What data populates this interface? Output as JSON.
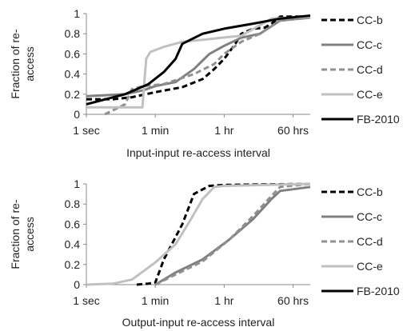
{
  "chart_data": [
    {
      "type": "line",
      "xlabel": "Input-input re-access interval",
      "ylabel_lines": [
        "Fraction of re-",
        "access"
      ],
      "x_scale": "log",
      "x_ticks": [
        {
          "seconds": 1,
          "label": "1 sec"
        },
        {
          "seconds": 60,
          "label": "1 min"
        },
        {
          "seconds": 3600,
          "label": "1 hr"
        },
        {
          "seconds": 216000,
          "label": "60 hrs"
        }
      ],
      "xlim_seconds": [
        1,
        600000
      ],
      "ylim": [
        0,
        1
      ],
      "y_ticks": [
        "0",
        "0.2",
        "0.4",
        "0.6",
        "0.8",
        "1"
      ],
      "grid": false,
      "legend_position": "right",
      "series": [
        {
          "name": "CC-b",
          "color": "#000000",
          "dash": "dashed",
          "points": [
            [
              1,
              0.15
            ],
            [
              5,
              0.15
            ],
            [
              15,
              0.17
            ],
            [
              60,
              0.22
            ],
            [
              300,
              0.27
            ],
            [
              1000,
              0.35
            ],
            [
              2000,
              0.45
            ],
            [
              3600,
              0.55
            ],
            [
              7000,
              0.7
            ],
            [
              10000,
              0.8
            ],
            [
              20000,
              0.85
            ],
            [
              40000,
              0.86
            ],
            [
              60000,
              0.9
            ],
            [
              100000,
              0.97
            ],
            [
              600000,
              0.97
            ]
          ]
        },
        {
          "name": "CC-c",
          "color": "#808080",
          "dash": "solid",
          "points": [
            [
              1,
              0.18
            ],
            [
              10,
              0.2
            ],
            [
              30,
              0.24
            ],
            [
              60,
              0.28
            ],
            [
              200,
              0.32
            ],
            [
              600,
              0.45
            ],
            [
              1500,
              0.6
            ],
            [
              3600,
              0.68
            ],
            [
              10000,
              0.76
            ],
            [
              30000,
              0.8
            ],
            [
              100000,
              0.93
            ],
            [
              600000,
              0.96
            ]
          ]
        },
        {
          "name": "CC-d",
          "color": "#909090",
          "dash": "dashed",
          "points": [
            [
              3,
              0.0
            ],
            [
              10,
              0.1
            ],
            [
              15,
              0.25
            ],
            [
              30,
              0.28
            ],
            [
              100,
              0.3
            ],
            [
              600,
              0.4
            ],
            [
              2000,
              0.5
            ],
            [
              3600,
              0.6
            ],
            [
              10000,
              0.72
            ],
            [
              30000,
              0.8
            ],
            [
              100000,
              0.93
            ],
            [
              600000,
              0.97
            ]
          ]
        },
        {
          "name": "CC-e",
          "color": "#c0c0c0",
          "dash": "solid",
          "points": [
            [
              1,
              0.07
            ],
            [
              20,
              0.07
            ],
            [
              28,
              0.07
            ],
            [
              35,
              0.55
            ],
            [
              45,
              0.62
            ],
            [
              100,
              0.67
            ],
            [
              300,
              0.72
            ],
            [
              1000,
              0.74
            ],
            [
              3000,
              0.76
            ],
            [
              10000,
              0.78
            ],
            [
              60000,
              0.95
            ],
            [
              600000,
              0.97
            ]
          ]
        },
        {
          "name": "FB-2010",
          "color": "#000000",
          "dash": "solid",
          "points": [
            [
              1,
              0.1
            ],
            [
              10,
              0.2
            ],
            [
              40,
              0.3
            ],
            [
              100,
              0.42
            ],
            [
              200,
              0.55
            ],
            [
              300,
              0.7
            ],
            [
              1000,
              0.8
            ],
            [
              3600,
              0.85
            ],
            [
              20000,
              0.9
            ],
            [
              100000,
              0.95
            ],
            [
              600000,
              0.98
            ]
          ]
        }
      ]
    },
    {
      "type": "line",
      "xlabel": "Output-input re-access interval",
      "ylabel_lines": [
        "Fraction of re-",
        "access"
      ],
      "x_scale": "log",
      "x_ticks": [
        {
          "seconds": 1,
          "label": "1 sec"
        },
        {
          "seconds": 60,
          "label": "1 min"
        },
        {
          "seconds": 3600,
          "label": "1 hr"
        },
        {
          "seconds": 216000,
          "label": "60 hrs"
        }
      ],
      "xlim_seconds": [
        1,
        600000
      ],
      "ylim": [
        0,
        1
      ],
      "y_ticks": [
        "0",
        "0.2",
        "0.4",
        "0.6",
        "0.8",
        "1"
      ],
      "grid": false,
      "legend_position": "right",
      "series": [
        {
          "name": "CC-b",
          "color": "#000000",
          "dash": "dashed",
          "points": [
            [
              20,
              0.0
            ],
            [
              40,
              0.01
            ],
            [
              60,
              0.02
            ],
            [
              100,
              0.25
            ],
            [
              300,
              0.6
            ],
            [
              600,
              0.9
            ],
            [
              1500,
              0.98
            ],
            [
              3600,
              0.99
            ],
            [
              600000,
              1.0
            ]
          ]
        },
        {
          "name": "CC-c",
          "color": "#808080",
          "dash": "solid",
          "points": [
            [
              60,
              0.0
            ],
            [
              200,
              0.12
            ],
            [
              1000,
              0.25
            ],
            [
              5000,
              0.45
            ],
            [
              20000,
              0.65
            ],
            [
              60000,
              0.85
            ],
            [
              100000,
              0.93
            ],
            [
              600000,
              0.97
            ]
          ]
        },
        {
          "name": "CC-d",
          "color": "#909090",
          "dash": "dashed",
          "points": [
            [
              60,
              0.0
            ],
            [
              200,
              0.1
            ],
            [
              1000,
              0.23
            ],
            [
              5000,
              0.45
            ],
            [
              20000,
              0.68
            ],
            [
              60000,
              0.88
            ],
            [
              100000,
              0.97
            ],
            [
              600000,
              1.0
            ]
          ]
        },
        {
          "name": "CC-e",
          "color": "#c0c0c0",
          "dash": "solid",
          "points": [
            [
              1,
              0.0
            ],
            [
              5,
              0.01
            ],
            [
              15,
              0.05
            ],
            [
              60,
              0.22
            ],
            [
              200,
              0.4
            ],
            [
              500,
              0.65
            ],
            [
              1000,
              0.85
            ],
            [
              2000,
              0.97
            ],
            [
              3600,
              0.98
            ],
            [
              600000,
              1.0
            ]
          ]
        }
      ]
    }
  ],
  "legend": {
    "entries": [
      {
        "name": "CC-b",
        "color": "#000000",
        "dash": "dashed"
      },
      {
        "name": "CC-c",
        "color": "#808080",
        "dash": "solid"
      },
      {
        "name": "CC-d",
        "color": "#909090",
        "dash": "dashed"
      },
      {
        "name": "CC-e",
        "color": "#c0c0c0",
        "dash": "solid"
      },
      {
        "name": "FB-2010",
        "color": "#000000",
        "dash": "solid"
      }
    ]
  }
}
